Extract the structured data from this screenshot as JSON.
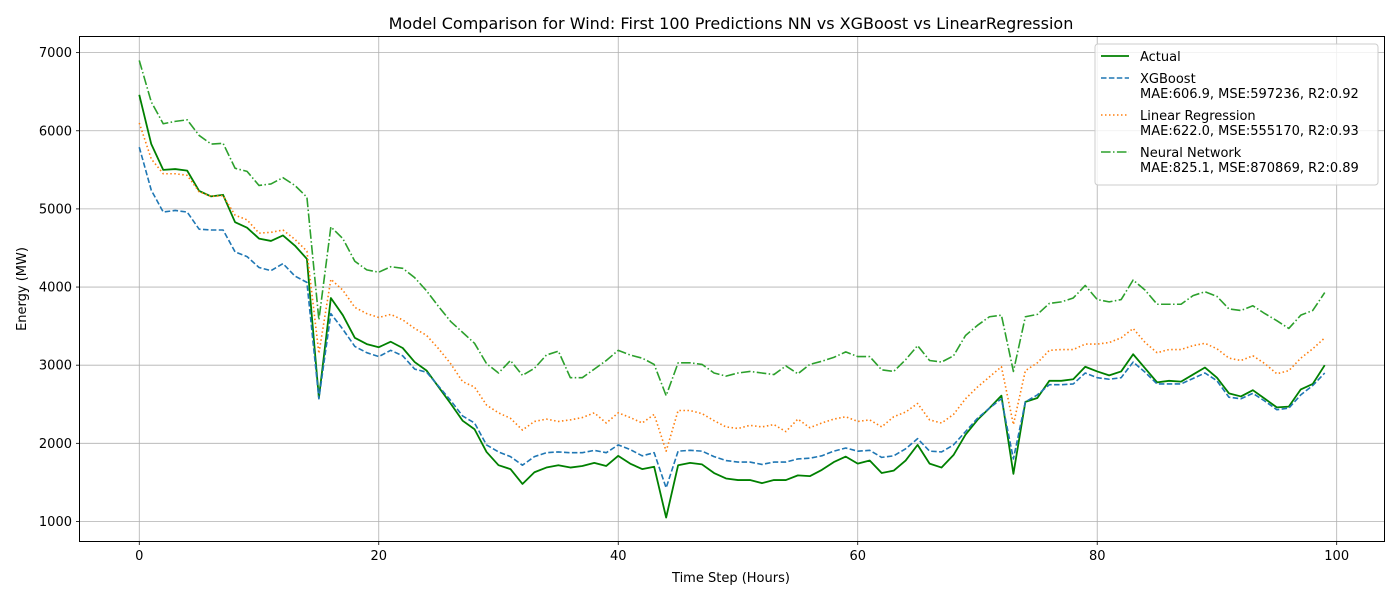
{
  "chart_data": {
    "type": "line",
    "title": "Model Comparison for Wind: First 100 Predictions NN vs XGBoost vs LinearRegression",
    "xlabel": "Time Step (Hours)",
    "ylabel": "Energy (MW)",
    "xlim": [
      -4.95,
      103.95
    ],
    "ylim": [
      750,
      7200
    ],
    "xticks": [
      0,
      20,
      40,
      60,
      80,
      100
    ],
    "yticks": [
      1000,
      2000,
      3000,
      4000,
      5000,
      6000,
      7000
    ],
    "grid": true,
    "legend_position": "top-right",
    "x": [
      0,
      1,
      2,
      3,
      4,
      5,
      6,
      7,
      8,
      9,
      10,
      11,
      12,
      13,
      14,
      15,
      16,
      17,
      18,
      19,
      20,
      21,
      22,
      23,
      24,
      25,
      26,
      27,
      28,
      29,
      30,
      31,
      32,
      33,
      34,
      35,
      36,
      37,
      38,
      39,
      40,
      41,
      42,
      43,
      44,
      45,
      46,
      47,
      48,
      49,
      50,
      51,
      52,
      53,
      54,
      55,
      56,
      57,
      58,
      59,
      60,
      61,
      62,
      63,
      64,
      65,
      66,
      67,
      68,
      69,
      70,
      71,
      72,
      73,
      74,
      75,
      76,
      77,
      78,
      79,
      80,
      81,
      82,
      83,
      84,
      85,
      86,
      87,
      88,
      89,
      90,
      91,
      92,
      93,
      94,
      95,
      96,
      97,
      98,
      99
    ],
    "series": [
      {
        "name": "Actual",
        "label_lines": [
          "Actual"
        ],
        "color": "#008000",
        "dash": "solid",
        "values": [
          6460,
          5830,
          5500,
          5510,
          5490,
          5230,
          5160,
          5180,
          4830,
          4760,
          4620,
          4590,
          4660,
          4530,
          4360,
          2580,
          3860,
          3640,
          3350,
          3270,
          3230,
          3300,
          3220,
          3040,
          2930,
          2720,
          2510,
          2290,
          2180,
          1890,
          1720,
          1670,
          1480,
          1630,
          1690,
          1720,
          1690,
          1710,
          1750,
          1710,
          1840,
          1740,
          1670,
          1700,
          1050,
          1720,
          1750,
          1730,
          1620,
          1550,
          1530,
          1530,
          1490,
          1530,
          1530,
          1590,
          1580,
          1660,
          1760,
          1830,
          1740,
          1780,
          1620,
          1650,
          1780,
          1980,
          1740,
          1690,
          1850,
          2110,
          2300,
          2450,
          2610,
          1610,
          2530,
          2580,
          2800,
          2800,
          2820,
          2980,
          2920,
          2870,
          2920,
          3140,
          2960,
          2780,
          2800,
          2790,
          2880,
          2970,
          2840,
          2640,
          2600,
          2680,
          2570,
          2460,
          2470,
          2690,
          2760,
          3000
        ]
      },
      {
        "name": "XGBoost",
        "label_lines": [
          "XGBoost",
          "MAE:606.9, MSE:597236, R2:0.92"
        ],
        "color": "#1f77b4",
        "dash": "dashed",
        "values": [
          5790,
          5240,
          4960,
          4980,
          4960,
          4740,
          4730,
          4730,
          4450,
          4390,
          4250,
          4210,
          4300,
          4140,
          4060,
          2570,
          3660,
          3460,
          3240,
          3160,
          3110,
          3190,
          3120,
          2950,
          2910,
          2730,
          2550,
          2350,
          2260,
          1980,
          1890,
          1830,
          1720,
          1830,
          1880,
          1890,
          1880,
          1880,
          1910,
          1880,
          1980,
          1920,
          1840,
          1880,
          1430,
          1900,
          1910,
          1900,
          1830,
          1780,
          1760,
          1760,
          1730,
          1760,
          1760,
          1800,
          1810,
          1840,
          1900,
          1940,
          1900,
          1910,
          1820,
          1840,
          1930,
          2060,
          1900,
          1890,
          1980,
          2150,
          2320,
          2450,
          2570,
          1800,
          2530,
          2620,
          2750,
          2750,
          2760,
          2900,
          2840,
          2820,
          2840,
          3040,
          2910,
          2760,
          2760,
          2760,
          2830,
          2900,
          2800,
          2590,
          2570,
          2640,
          2540,
          2430,
          2450,
          2620,
          2740,
          2900
        ]
      },
      {
        "name": "Linear Regression",
        "label_lines": [
          "Linear Regression",
          "MAE:622.0, MSE:555170, R2:0.93"
        ],
        "color": "#ff7f0e",
        "dash": "dotted",
        "values": [
          6100,
          5640,
          5450,
          5450,
          5430,
          5220,
          5160,
          5170,
          4920,
          4860,
          4690,
          4700,
          4730,
          4610,
          4460,
          3150,
          4100,
          3960,
          3740,
          3660,
          3610,
          3650,
          3580,
          3470,
          3380,
          3210,
          3020,
          2790,
          2720,
          2490,
          2390,
          2320,
          2170,
          2280,
          2310,
          2280,
          2300,
          2330,
          2390,
          2260,
          2390,
          2330,
          2260,
          2370,
          1900,
          2420,
          2420,
          2380,
          2290,
          2210,
          2190,
          2230,
          2210,
          2240,
          2150,
          2310,
          2200,
          2260,
          2310,
          2340,
          2280,
          2300,
          2210,
          2340,
          2400,
          2510,
          2300,
          2260,
          2370,
          2570,
          2720,
          2850,
          2980,
          2240,
          2930,
          3030,
          3190,
          3200,
          3200,
          3270,
          3270,
          3290,
          3350,
          3470,
          3290,
          3160,
          3200,
          3200,
          3250,
          3280,
          3210,
          3090,
          3060,
          3120,
          3020,
          2890,
          2930,
          3090,
          3210,
          3350
        ]
      },
      {
        "name": "Neural Network",
        "label_lines": [
          "Neural Network",
          "MAE:825.1, MSE:870869, R2:0.89"
        ],
        "color": "#2ca02c",
        "dash": "dashdot",
        "values": [
          6900,
          6370,
          6090,
          6120,
          6140,
          5940,
          5830,
          5840,
          5520,
          5480,
          5300,
          5320,
          5400,
          5300,
          5150,
          3580,
          4770,
          4620,
          4330,
          4220,
          4190,
          4260,
          4240,
          4120,
          3950,
          3750,
          3560,
          3420,
          3280,
          3020,
          2900,
          3060,
          2870,
          2960,
          3130,
          3180,
          2840,
          2840,
          2950,
          3060,
          3190,
          3130,
          3090,
          3010,
          2610,
          3030,
          3030,
          3010,
          2900,
          2860,
          2900,
          2920,
          2900,
          2880,
          2990,
          2890,
          3010,
          3050,
          3100,
          3170,
          3110,
          3110,
          2940,
          2920,
          3070,
          3250,
          3060,
          3040,
          3120,
          3380,
          3510,
          3620,
          3640,
          2920,
          3620,
          3650,
          3790,
          3810,
          3860,
          4020,
          3840,
          3810,
          3840,
          4090,
          3960,
          3780,
          3780,
          3780,
          3890,
          3940,
          3880,
          3720,
          3700,
          3760,
          3660,
          3570,
          3470,
          3640,
          3700,
          3930
        ]
      }
    ]
  }
}
